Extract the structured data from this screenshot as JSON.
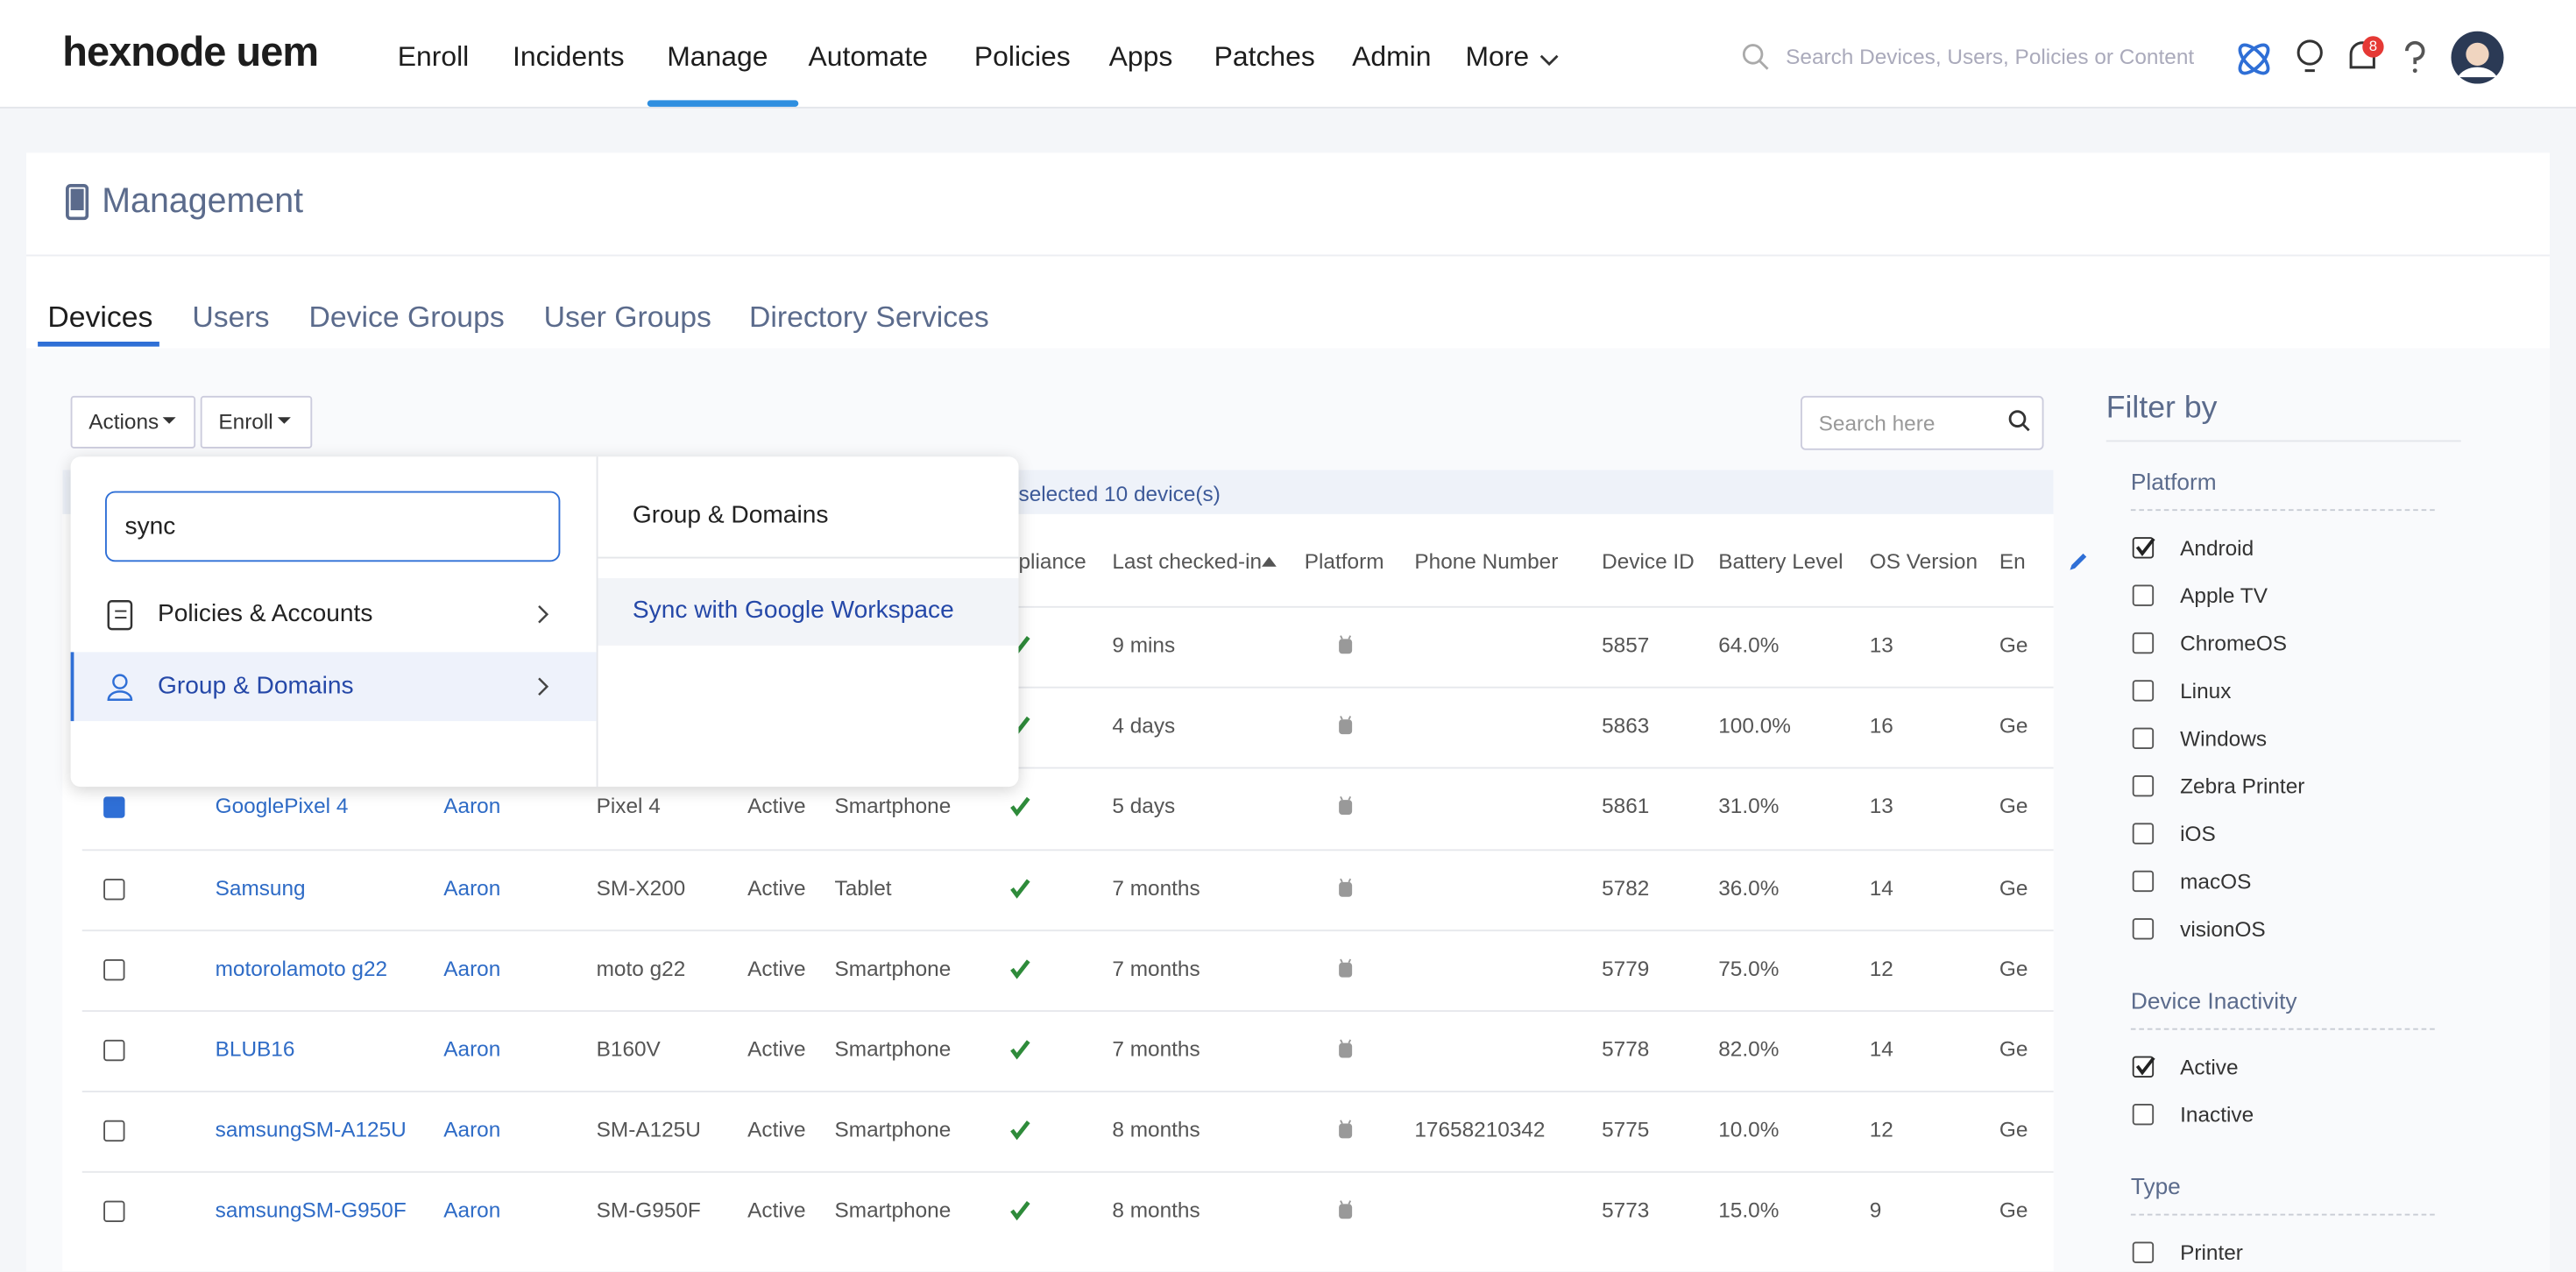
{
  "nav": {
    "logo": "hexnode uem",
    "items": [
      "Enroll",
      "Incidents",
      "Manage",
      "Automate",
      "Policies",
      "Apps",
      "Patches",
      "Admin",
      "More"
    ],
    "active": 2,
    "search_placeholder": "Search Devices, Users, Policies or Content",
    "notification_count": "8"
  },
  "page": {
    "title": "Management",
    "tabs": [
      "Devices",
      "Users",
      "Device Groups",
      "User Groups",
      "Directory Services"
    ],
    "active_tab": 0
  },
  "toolbar": {
    "actions": "Actions",
    "enroll": "Enroll",
    "search_placeholder": "Search here",
    "selection_banner": "selected 10 device(s)"
  },
  "dropdown": {
    "search_value": "sync",
    "menu": [
      "Policies & Accounts",
      "Group & Domains"
    ],
    "active_menu": 1,
    "submenu_title": "Group & Domains",
    "submenu_items": [
      "Sync with Google Workspace"
    ]
  },
  "table": {
    "headers": [
      "pliance",
      "Last checked-in",
      "Platform",
      "Phone Number",
      "Device ID",
      "Battery Level",
      "OS Version",
      "En"
    ],
    "rows": [
      {
        "last_checked": "9 mins",
        "device_id": "5857",
        "battery": "64.0%",
        "os": "13",
        "en": "Ge"
      },
      {
        "last_checked": "4 days",
        "device_id": "5863",
        "battery": "100.0%",
        "os": "16",
        "en": "Ge"
      },
      {
        "checked": true,
        "name": "GooglePixel 4",
        "user": "Aaron",
        "model": "Pixel 4",
        "status": "Active",
        "type": "Smartphone",
        "last_checked": "5 days",
        "device_id": "5861",
        "battery": "31.0%",
        "os": "13",
        "en": "Ge"
      },
      {
        "checked": false,
        "name": "Samsung",
        "user": "Aaron",
        "model": "SM-X200",
        "status": "Active",
        "type": "Tablet",
        "last_checked": "7 months",
        "device_id": "5782",
        "battery": "36.0%",
        "os": "14",
        "en": "Ge"
      },
      {
        "checked": false,
        "name": "motorolamoto g22",
        "user": "Aaron",
        "model": "moto g22",
        "status": "Active",
        "type": "Smartphone",
        "last_checked": "7 months",
        "device_id": "5779",
        "battery": "75.0%",
        "os": "12",
        "en": "Ge"
      },
      {
        "checked": false,
        "name": "BLUB16",
        "user": "Aaron",
        "model": "B160V",
        "status": "Active",
        "type": "Smartphone",
        "last_checked": "7 months",
        "device_id": "5778",
        "battery": "82.0%",
        "os": "14",
        "en": "Ge"
      },
      {
        "checked": false,
        "name": "samsungSM-A125U",
        "user": "Aaron",
        "model": "SM-A125U",
        "status": "Active",
        "type": "Smartphone",
        "last_checked": "8 months",
        "phone": "17658210342",
        "device_id": "5775",
        "battery": "10.0%",
        "os": "12",
        "en": "Ge"
      },
      {
        "checked": false,
        "name": "samsungSM-G950F",
        "user": "Aaron",
        "model": "SM-G950F",
        "status": "Active",
        "type": "Smartphone",
        "last_checked": "8 months",
        "device_id": "5773",
        "battery": "15.0%",
        "os": "9",
        "en": "Ge"
      }
    ]
  },
  "filter": {
    "title": "Filter by",
    "sections": [
      {
        "title": "Platform",
        "options": [
          {
            "label": "Android",
            "checked": true
          },
          {
            "label": "Apple TV",
            "checked": false
          },
          {
            "label": "ChromeOS",
            "checked": false
          },
          {
            "label": "Linux",
            "checked": false
          },
          {
            "label": "Windows",
            "checked": false
          },
          {
            "label": "Zebra Printer",
            "checked": false
          },
          {
            "label": "iOS",
            "checked": false
          },
          {
            "label": "macOS",
            "checked": false
          },
          {
            "label": "visionOS",
            "checked": false
          }
        ]
      },
      {
        "title": "Device Inactivity",
        "options": [
          {
            "label": "Active",
            "checked": true
          },
          {
            "label": "Inactive",
            "checked": false
          }
        ]
      },
      {
        "title": "Type",
        "options": [
          {
            "label": "Printer",
            "checked": false
          }
        ]
      }
    ]
  }
}
